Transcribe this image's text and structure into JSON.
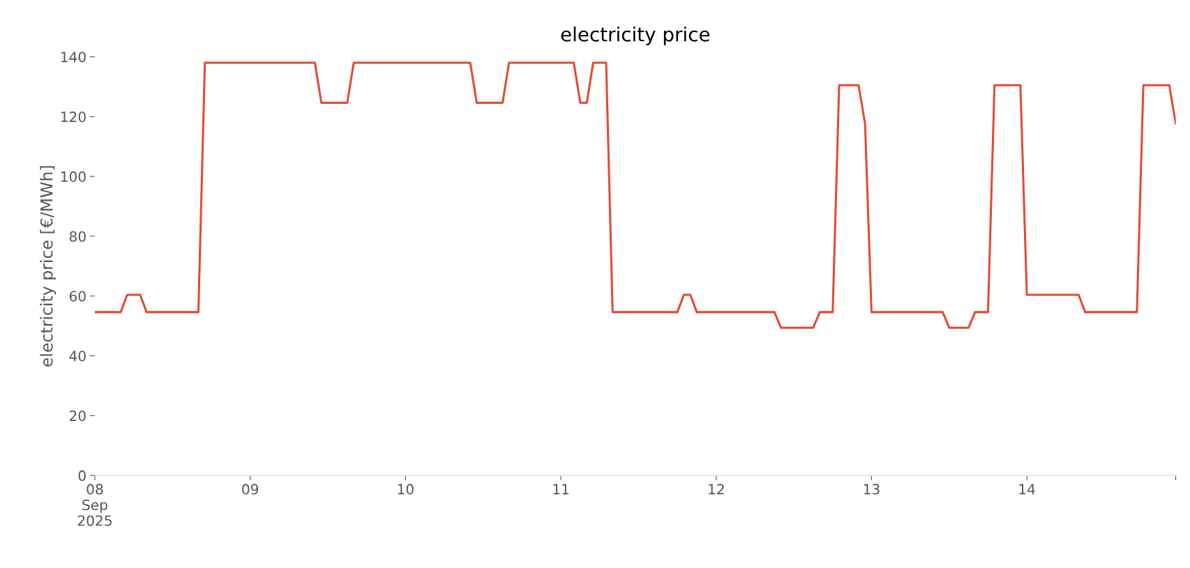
{
  "chart_data": {
    "type": "line",
    "title": "electricity price",
    "ylabel": "electricity price [€/MWh]",
    "x": [
      "2025-09-08T00:00",
      "2025-09-08T04:00",
      "2025-09-08T05:00",
      "2025-09-08T07:00",
      "2025-09-08T08:00",
      "2025-09-08T16:00",
      "2025-09-08T17:00",
      "2025-09-09T10:00",
      "2025-09-09T11:00",
      "2025-09-09T15:00",
      "2025-09-09T16:00",
      "2025-09-10T10:00",
      "2025-09-10T11:00",
      "2025-09-10T15:00",
      "2025-09-10T16:00",
      "2025-09-11T02:00",
      "2025-09-11T03:00",
      "2025-09-11T04:00",
      "2025-09-11T05:00",
      "2025-09-11T07:00",
      "2025-09-11T08:00",
      "2025-09-11T18:00",
      "2025-09-11T19:00",
      "2025-09-11T20:00",
      "2025-09-11T21:00",
      "2025-09-12T09:00",
      "2025-09-12T10:00",
      "2025-09-12T15:00",
      "2025-09-12T16:00",
      "2025-09-12T18:00",
      "2025-09-12T19:00",
      "2025-09-12T22:00",
      "2025-09-12T23:00",
      "2025-09-13T00:00",
      "2025-09-13T11:00",
      "2025-09-13T12:00",
      "2025-09-13T15:00",
      "2025-09-13T16:00",
      "2025-09-13T18:00",
      "2025-09-13T19:00",
      "2025-09-13T23:00",
      "2025-09-14T00:00",
      "2025-09-14T08:00",
      "2025-09-14T09:00",
      "2025-09-14T17:00",
      "2025-09-14T18:00",
      "2025-09-14T22:00",
      "2025-09-14T23:00"
    ],
    "series": [
      {
        "color": "#e24a33",
        "values": [
          54.6,
          54.6,
          60.4,
          60.4,
          54.6,
          54.6,
          138,
          138,
          124.6,
          124.6,
          138,
          138,
          124.6,
          124.6,
          138,
          138,
          124.6,
          124.6,
          138,
          138,
          54.6,
          54.6,
          60.4,
          60.4,
          54.6,
          54.6,
          49.4,
          49.4,
          54.6,
          54.6,
          130.5,
          130.5,
          117.7,
          54.6,
          54.6,
          49.4,
          49.4,
          54.6,
          54.6,
          130.5,
          130.5,
          60.4,
          60.4,
          54.6,
          54.6,
          130.5,
          130.5,
          117.7
        ]
      }
    ],
    "xticks": [
      {
        "value": "2025-09-08T00:00",
        "label": "08\nSep\n2025"
      },
      {
        "value": "2025-09-09T00:00",
        "label": "09"
      },
      {
        "value": "2025-09-10T00:00",
        "label": "10"
      },
      {
        "value": "2025-09-11T00:00",
        "label": "11"
      },
      {
        "value": "2025-09-12T00:00",
        "label": "12"
      },
      {
        "value": "2025-09-13T00:00",
        "label": "13"
      },
      {
        "value": "2025-09-14T00:00",
        "label": "14"
      },
      {
        "value": "2025-09-14T23:00",
        "label": null
      }
    ],
    "xlim": [
      "2025-09-08T00:00",
      "2025-09-14T23:00"
    ],
    "ylim": [
      0,
      140
    ],
    "yticks": [
      0,
      20,
      40,
      60,
      80,
      100,
      120,
      140
    ],
    "grid": false,
    "marker": "none",
    "line_style": "solid"
  }
}
